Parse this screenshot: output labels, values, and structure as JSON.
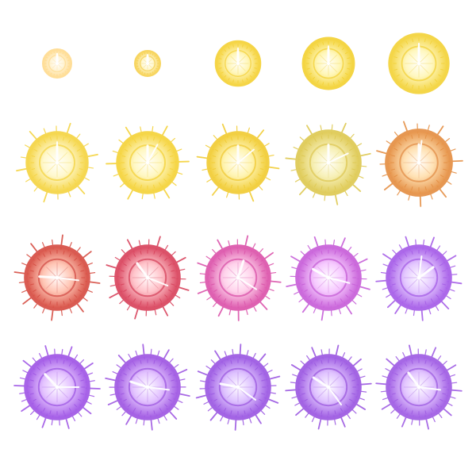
{
  "sprite_sheet": {
    "background": "#ffffff",
    "frames": [
      {
        "index": 1,
        "color": "#ffd98a",
        "glow": "#fff4d6",
        "hour": 0,
        "minute": 0,
        "spikes": 0
      },
      {
        "index": 2,
        "color": "#f6cf4a",
        "glow": "#fff8d0",
        "hour": 0,
        "minute": 0,
        "spikes": 0
      },
      {
        "index": 3,
        "color": "#f4cf2e",
        "glow": "#fff6b8",
        "hour": 0,
        "minute": 0,
        "spikes": 0
      },
      {
        "index": 4,
        "color": "#f2cf2a",
        "glow": "#fff6b4",
        "hour": 0,
        "minute": 0,
        "spikes": 0
      },
      {
        "index": 5,
        "color": "#f2d030",
        "glow": "#fff7bd",
        "hour": 0,
        "minute": 0,
        "spikes": 0
      },
      {
        "index": 6,
        "color": "#f4d23a",
        "glow": "#fff8cc",
        "hour": 0,
        "minute": 0,
        "spikes": 18
      },
      {
        "index": 7,
        "color": "#f4d030",
        "glow": "#fff7c0",
        "hour": 0,
        "minute": 0.08,
        "spikes": 18
      },
      {
        "index": 8,
        "color": "#f0c92a",
        "glow": "#fff4b0",
        "hour": 0,
        "minute": 0.14,
        "spikes": 18
      },
      {
        "index": 9,
        "color": "#dcc64a",
        "glow": "#f7f0b5",
        "hour": 0,
        "minute": 0.18,
        "spikes": 20
      },
      {
        "index": 10,
        "color": "#e3893a",
        "glow": "#ffe0b0",
        "hour": 0,
        "minute": 0.02,
        "spikes": 20
      },
      {
        "index": 11,
        "color": "#d4453a",
        "glow": "#ffc3b1",
        "hour": 0.76,
        "minute": 0.27,
        "spikes": 24
      },
      {
        "index": 12,
        "color": "#d63a55",
        "glow": "#ffc1c8",
        "hour": 0.9,
        "minute": 0.31,
        "spikes": 24
      },
      {
        "index": 13,
        "color": "#d94ba6",
        "glow": "#ffd0ea",
        "hour": 0.05,
        "minute": 0.34,
        "spikes": 26
      },
      {
        "index": 14,
        "color": "#c457d6",
        "glow": "#f6c8ff",
        "hour": 0.83,
        "minute": 0.29,
        "spikes": 26
      },
      {
        "index": 15,
        "color": "#a155e6",
        "glow": "#e3c6ff",
        "hour": 0.15,
        "minute": 0.02,
        "spikes": 28
      },
      {
        "index": 16,
        "color": "#9b4ee4",
        "glow": "#e3c0ff",
        "hour": 0.88,
        "minute": 0.25,
        "spikes": 30
      },
      {
        "index": 17,
        "color": "#9a4fe0",
        "glow": "#e2c1ff",
        "hour": 0.8,
        "minute": 0.27,
        "spikes": 30
      },
      {
        "index": 18,
        "color": "#9650e0",
        "glow": "#ddc0ff",
        "hour": 0.78,
        "minute": 0.35,
        "spikes": 30
      },
      {
        "index": 19,
        "color": "#9650df",
        "glow": "#dfc1ff",
        "hour": 0.84,
        "minute": 0.4,
        "spikes": 30
      },
      {
        "index": 20,
        "color": "#9a54e2",
        "glow": "#e2c4ff",
        "hour": 0.9,
        "minute": 0.27,
        "spikes": 30
      }
    ]
  }
}
